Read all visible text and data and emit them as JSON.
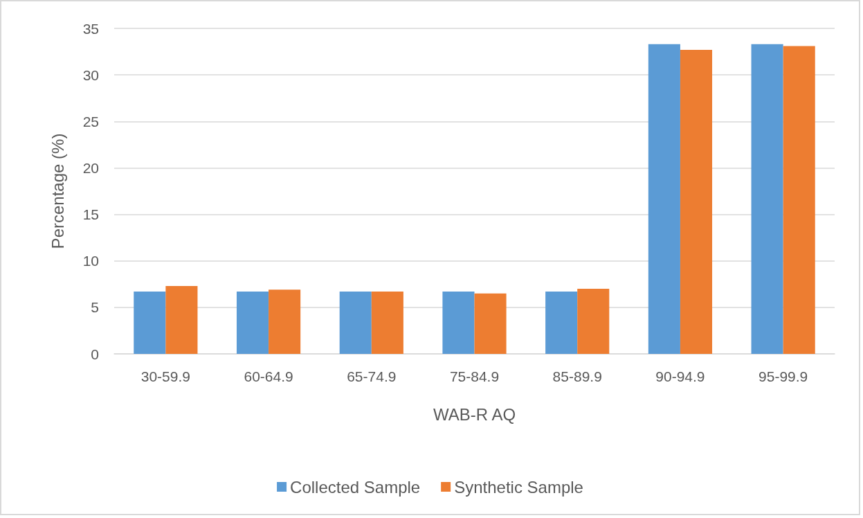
{
  "chart_data": {
    "type": "bar",
    "xlabel": "WAB-R AQ",
    "ylabel": "Percentage (%)",
    "categories": [
      "30-59.9",
      "60-64.9",
      "65-74.9",
      "75-84.9",
      "85-89.9",
      "90-94.9",
      "95-99.9"
    ],
    "series": [
      {
        "name": "Collected Sample",
        "color": "#5b9bd5",
        "values": [
          6.7,
          6.7,
          6.7,
          6.7,
          6.7,
          33.3,
          33.3
        ]
      },
      {
        "name": "Synthetic Sample",
        "color": "#ed7d31",
        "values": [
          7.3,
          6.9,
          6.7,
          6.5,
          7.0,
          32.7,
          33.1
        ]
      }
    ],
    "ylim": [
      0,
      35
    ],
    "yticks": [
      0,
      5,
      10,
      15,
      20,
      25,
      30,
      35
    ],
    "grid": "y",
    "legend": "bottom"
  }
}
